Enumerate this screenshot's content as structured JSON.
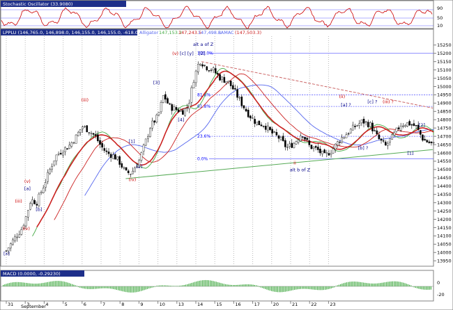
{
  "panels": {
    "stochastic": {
      "title": "Stochastic Oscillator (33.9080)",
      "scale": [
        "90",
        "50",
        "10"
      ]
    },
    "price": {
      "title": "LPPLU (146,765.0, 146,898.0, 146,155.0, 146,155.0, -618.000)",
      "indicators": [
        "Alligator",
        "147,153.2",
        "147,243.5",
        "147,498.8",
        "LAMAC",
        "(147,503.3)"
      ]
    },
    "macd": {
      "title": "MACD (0.0000, -0.29230)",
      "scale": [
        "0",
        "-20"
      ]
    }
  },
  "colors": {
    "panel_title_bar": "#1e2f8a",
    "up_candle": "#ffffff",
    "down_candle": "#000000",
    "jaw_blue": "#5566ee",
    "lips_green": "#44aa44",
    "teeth_red_ma": "#cc2222",
    "wave_labels_red": "#cc0000",
    "wave_labels_blue": "#000088",
    "stoch_line": "#cc0000",
    "fib_lines": "#6666ff",
    "support_trend": "#55aa55",
    "resistance_trend": "#cc6666",
    "macd_hist": "#44aa44"
  },
  "chart_data": {
    "type": "candlestick",
    "title": "",
    "xlabel": "",
    "ylabel": "",
    "x_ticks": [
      "31",
      "3",
      "4",
      "5",
      "6",
      "7",
      "8",
      "9",
      "10",
      "13",
      "14",
      "15",
      "16",
      "17",
      "20",
      "21",
      "22",
      "23"
    ],
    "month_label": "September",
    "y_ticks": [
      13950,
      14000,
      14050,
      14100,
      14150,
      14200,
      14250,
      14300,
      14350,
      14400,
      14450,
      14500,
      14550,
      14600,
      14650,
      14700,
      14750,
      14800,
      14850,
      14900,
      14950,
      15000,
      15050,
      15100,
      15150,
      15200,
      15250
    ],
    "ylim": [
      13930,
      15270
    ],
    "close_path": [
      [
        0,
        14010
      ],
      [
        0.4,
        14080
      ],
      [
        0.8,
        14140
      ],
      [
        1.0,
        14200
      ],
      [
        1.3,
        14320
      ],
      [
        1.6,
        14300
      ],
      [
        2.0,
        14410
      ],
      [
        2.3,
        14500
      ],
      [
        2.6,
        14580
      ],
      [
        3.0,
        14620
      ],
      [
        3.3,
        14640
      ],
      [
        3.7,
        14700
      ],
      [
        4.0,
        14760
      ],
      [
        4.3,
        14740
      ],
      [
        4.7,
        14700
      ],
      [
        5.0,
        14640
      ],
      [
        5.3,
        14600
      ],
      [
        5.7,
        14580
      ],
      [
        6.0,
        14540
      ],
      [
        6.3,
        14480
      ],
      [
        6.6,
        14480
      ],
      [
        7.0,
        14550
      ],
      [
        7.3,
        14650
      ],
      [
        7.6,
        14760
      ],
      [
        8.0,
        14820
      ],
      [
        8.3,
        14950
      ],
      [
        8.6,
        14880
      ],
      [
        9.0,
        14860
      ],
      [
        9.3,
        14850
      ],
      [
        9.6,
        14880
      ],
      [
        9.9,
        15050
      ],
      [
        10.2,
        15160
      ],
      [
        10.5,
        15120
      ],
      [
        10.9,
        15100
      ],
      [
        11.3,
        15050
      ],
      [
        11.7,
        15030
      ],
      [
        12.0,
        14980
      ],
      [
        12.4,
        14900
      ],
      [
        12.8,
        14830
      ],
      [
        13.2,
        14780
      ],
      [
        13.6,
        14770
      ],
      [
        14.0,
        14720
      ],
      [
        14.4,
        14690
      ],
      [
        14.8,
        14630
      ],
      [
        15.2,
        14660
      ],
      [
        15.6,
        14720
      ],
      [
        16.0,
        14640
      ],
      [
        16.4,
        14620
      ],
      [
        16.8,
        14580
      ],
      [
        17.2,
        14620
      ],
      [
        17.6,
        14680
      ],
      [
        18.0,
        14720
      ],
      [
        18.4,
        14760
      ],
      [
        18.8,
        14790
      ],
      [
        19.2,
        14770
      ],
      [
        19.6,
        14690
      ],
      [
        20.0,
        14640
      ],
      [
        20.4,
        14700
      ],
      [
        20.8,
        14770
      ],
      [
        21.2,
        14780
      ],
      [
        21.6,
        14760
      ],
      [
        22.0,
        14680
      ],
      [
        22.5,
        14650
      ]
    ],
    "fib_levels": [
      {
        "label": "100.0%",
        "value": 15200
      },
      {
        "label": "81.8%",
        "value": 14950
      },
      {
        "label": "61.8%",
        "value": 14880
      },
      {
        "label": "23.6%",
        "value": 14700
      },
      {
        "label": "0.0%",
        "value": 14565
      }
    ],
    "trendlines": [
      {
        "name": "support",
        "from": [
          6.3,
          14445
        ],
        "to": [
          22.5,
          14620
        ]
      },
      {
        "name": "resistance",
        "from": [
          10.3,
          15150
        ],
        "to": [
          22.5,
          14870
        ]
      }
    ],
    "wave_labels": [
      {
        "text": "[x]",
        "x": 0.0,
        "y": 13985,
        "color": "blue"
      },
      {
        "text": "(iv)",
        "x": 1.0,
        "y": 14135,
        "color": "red"
      },
      {
        "text": "(iii)",
        "x": 0.6,
        "y": 14300,
        "color": "red"
      },
      {
        "text": "(v)",
        "x": 1.1,
        "y": 14420,
        "color": "red"
      },
      {
        "text": "[a]",
        "x": 1.1,
        "y": 14375,
        "color": "blue"
      },
      {
        "text": "[b]",
        "x": 1.7,
        "y": 14250,
        "color": "blue"
      },
      {
        "text": "(iii)",
        "x": 4.1,
        "y": 14910,
        "color": "red"
      },
      {
        "text": "[1]",
        "x": 6.6,
        "y": 14660,
        "color": "blue"
      },
      {
        "text": "[2]",
        "x": 7.0,
        "y": 14510,
        "color": "blue"
      },
      {
        "text": "(iv)",
        "x": 6.6,
        "y": 14430,
        "color": "red"
      },
      {
        "text": "[3]",
        "x": 7.9,
        "y": 15015,
        "color": "blue"
      },
      {
        "text": "[4]",
        "x": 9.2,
        "y": 14790,
        "color": "blue"
      },
      {
        "text": "alt a of Z",
        "x": 10.0,
        "y": 15245,
        "color": "blue"
      },
      {
        "text": "(v)",
        "x": 8.9,
        "y": 15190,
        "color": "red"
      },
      {
        "text": "[c]",
        "x": 9.3,
        "y": 15190,
        "color": "blue"
      },
      {
        "text": "[y]",
        "x": 9.7,
        "y": 15190,
        "color": "blue"
      },
      {
        "text": "[Z]",
        "x": 10.3,
        "y": 15190,
        "color": "blue"
      },
      {
        "text": "ii",
        "x": 15.3,
        "y": 14530,
        "color": "red"
      },
      {
        "text": "alt b of Z",
        "x": 15.1,
        "y": 14490,
        "color": "blue"
      },
      {
        "text": "(ii)",
        "x": 17.7,
        "y": 14930,
        "color": "red"
      },
      {
        "text": "[a] ?",
        "x": 17.8,
        "y": 14880,
        "color": "blue"
      },
      {
        "text": "[c] ?",
        "x": 19.2,
        "y": 14900,
        "color": "blue"
      },
      {
        "text": "(iii) ?",
        "x": 20.0,
        "y": 14900,
        "color": "red"
      },
      {
        "text": "[b] ?",
        "x": 18.7,
        "y": 14620,
        "color": "blue"
      },
      {
        "text": "[2]",
        "x": 21.9,
        "y": 14760,
        "color": "blue"
      },
      {
        "text": "[1]",
        "x": 21.3,
        "y": 14590,
        "color": "blue"
      }
    ],
    "stochastic_scale": [
      10,
      50,
      90
    ],
    "macd_scale": [
      -20,
      0
    ]
  }
}
